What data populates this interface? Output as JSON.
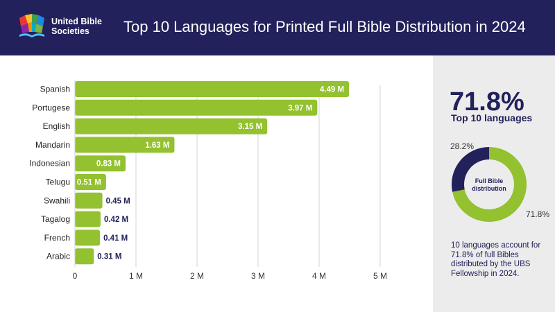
{
  "header": {
    "org_line1": "United Bible",
    "org_line2": "Societies",
    "title": "Top 10 Languages for Printed Full Bible Distribution in 2024"
  },
  "colors": {
    "navy": "#22215b",
    "green": "#93c12f",
    "panel": "#ececec",
    "grid": "#d3d3d3"
  },
  "icons": [
    "ubs-logo-icon"
  ],
  "chart_data": [
    {
      "type": "bar",
      "orientation": "horizontal",
      "categories": [
        "Spanish",
        "Portugese",
        "English",
        "Mandarin",
        "Indonesian",
        "Telugu",
        "Swahili",
        "Tagalog",
        "French",
        "Arabic"
      ],
      "values": [
        4.49,
        3.97,
        3.15,
        1.63,
        0.83,
        0.51,
        0.45,
        0.42,
        0.41,
        0.31
      ],
      "value_labels": [
        "4.49 M",
        "3.97 M",
        "3.15 M",
        "1.63 M",
        "0.83 M",
        "0.51 M",
        "0.45 M",
        "0.42 M",
        "0.41 M",
        "0.31 M"
      ],
      "xlim": [
        0,
        5
      ],
      "x_ticks": [
        0,
        1,
        2,
        3,
        4,
        5
      ],
      "x_tick_labels": [
        "0",
        "1 M",
        "2 M",
        "3 M",
        "4 M",
        "5 M"
      ],
      "grid": true
    },
    {
      "type": "pie",
      "variant": "donut",
      "center_label_line1": "Full Bible",
      "center_label_line2": "distribution",
      "slices": [
        {
          "label": "71.8%",
          "value": 71.8,
          "color": "#93c12f"
        },
        {
          "label": "28.2%",
          "value": 28.2,
          "color": "#22215b"
        }
      ]
    }
  ],
  "side": {
    "big_percent": "71.8%",
    "big_label": "Top 10 languages",
    "description": "10 languages account for 71.8% of full Bibles distributed by the UBS Fellowship in 2024."
  }
}
